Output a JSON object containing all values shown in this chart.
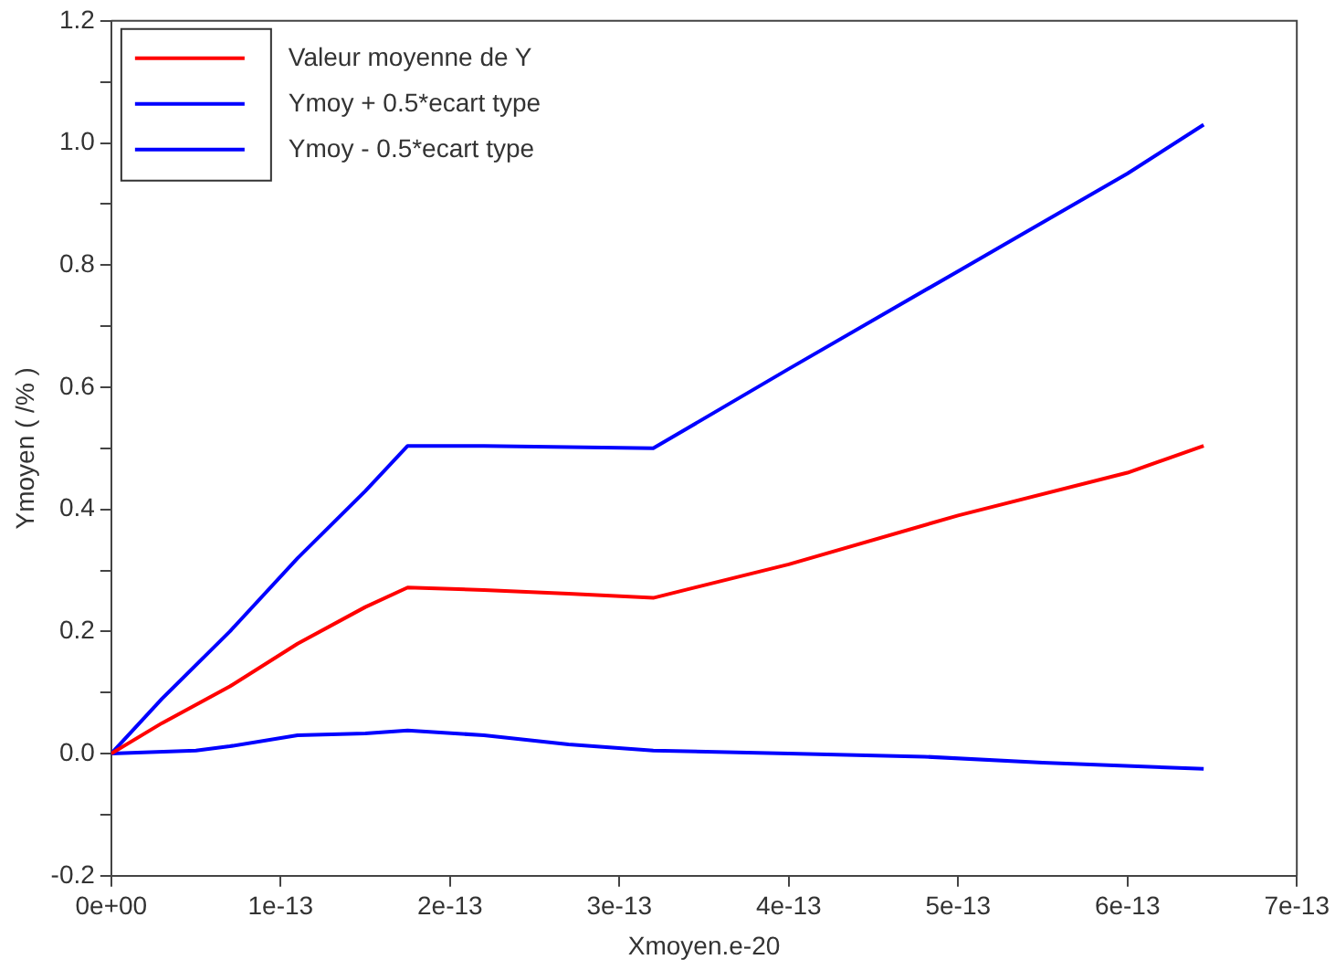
{
  "chart_data": {
    "type": "line",
    "xlabel": "Xmoyen.e-20",
    "ylabel": "Ymoyen ( /% )",
    "xlim": [
      0,
      7e-13
    ],
    "ylim": [
      -0.2,
      1.2
    ],
    "xticks": [
      {
        "value": 0,
        "label": "0e+00"
      },
      {
        "value": 1e-13,
        "label": "1e-13"
      },
      {
        "value": 2e-13,
        "label": "2e-13"
      },
      {
        "value": 3e-13,
        "label": "3e-13"
      },
      {
        "value": 4e-13,
        "label": "4e-13"
      },
      {
        "value": 5e-13,
        "label": "5e-13"
      },
      {
        "value": 6e-13,
        "label": "6e-13"
      },
      {
        "value": 7e-13,
        "label": "7e-13"
      }
    ],
    "yticks": [
      {
        "value": -0.2,
        "label": "-0.2"
      },
      {
        "value": -0.1,
        "label": null
      },
      {
        "value": 0,
        "label": "0.0"
      },
      {
        "value": 0.1,
        "label": null
      },
      {
        "value": 0.2,
        "label": "0.2"
      },
      {
        "value": 0.3,
        "label": null
      },
      {
        "value": 0.4,
        "label": "0.4"
      },
      {
        "value": 0.5,
        "label": null
      },
      {
        "value": 0.6,
        "label": "0.6"
      },
      {
        "value": 0.7,
        "label": null
      },
      {
        "value": 0.8,
        "label": "0.8"
      },
      {
        "value": 0.9,
        "label": null
      },
      {
        "value": 1.0,
        "label": "1.0"
      },
      {
        "value": 1.1,
        "label": null
      },
      {
        "value": 1.2,
        "label": "1.2"
      }
    ],
    "grid": false,
    "legend": "top left",
    "marker": "none",
    "line_style": "solid",
    "series": [
      {
        "name": "Valeur moyenne de Y",
        "color": "#ff0000",
        "x": [
          0,
          3e-14,
          7e-14,
          1.1e-13,
          1.5e-13,
          1.75e-13,
          2.2e-13,
          2.7e-13,
          3.2e-13,
          4e-13,
          5e-13,
          6e-13,
          6.45e-13
        ],
        "values": [
          0,
          0.05,
          0.11,
          0.18,
          0.24,
          0.272,
          0.268,
          0.262,
          0.255,
          0.31,
          0.39,
          0.46,
          0.504
        ]
      },
      {
        "name": "Ymoy + 0.5*ecart type",
        "color": "#0000ff",
        "x": [
          0,
          3e-14,
          7e-14,
          1.1e-13,
          1.5e-13,
          1.75e-13,
          2.2e-13,
          2.7e-13,
          3.2e-13,
          4e-13,
          5e-13,
          6e-13,
          6.45e-13
        ],
        "values": [
          0,
          0.09,
          0.2,
          0.32,
          0.43,
          0.504,
          0.504,
          0.502,
          0.5,
          0.63,
          0.79,
          0.95,
          1.03
        ]
      },
      {
        "name": "Ymoy - 0.5*ecart type",
        "color": "#0000ff",
        "x": [
          0,
          5e-14,
          7e-14,
          1.1e-13,
          1.5e-13,
          1.75e-13,
          2.2e-13,
          2.7e-13,
          3.2e-13,
          4e-13,
          4.8e-13,
          5.5e-13,
          6.45e-13
        ],
        "values": [
          0,
          0.005,
          0.012,
          0.03,
          0.033,
          0.038,
          0.03,
          0.015,
          0.005,
          0,
          -0.005,
          -0.015,
          -0.025
        ]
      }
    ]
  }
}
